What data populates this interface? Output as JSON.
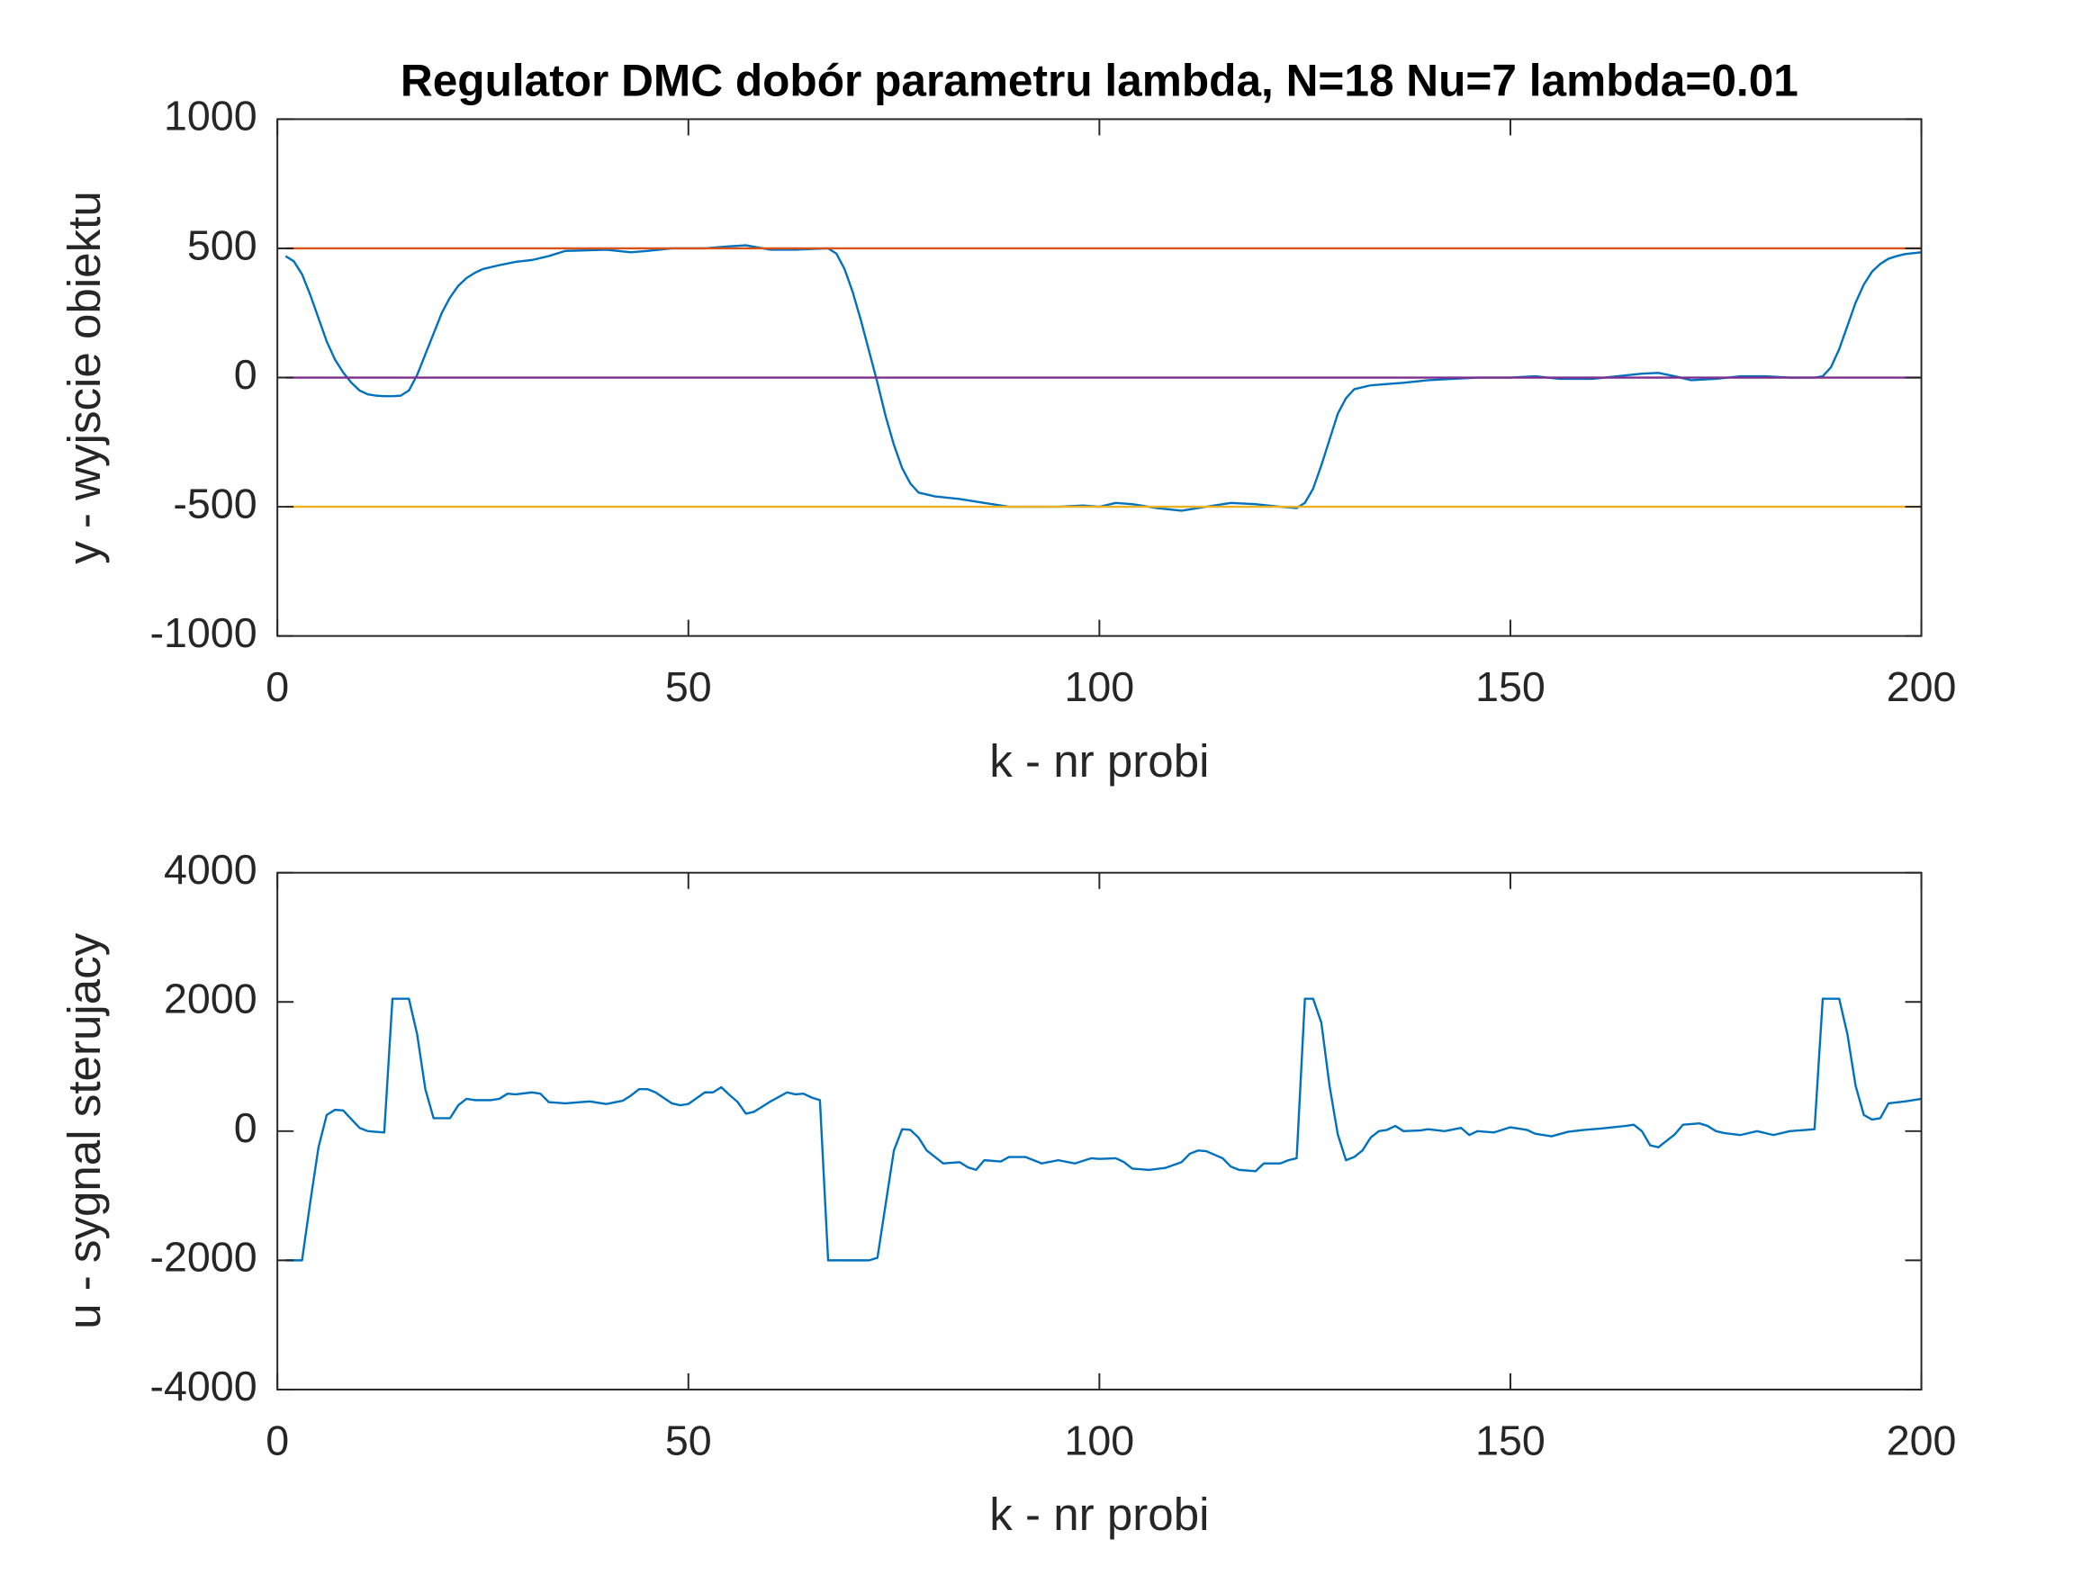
{
  "chart_data": [
    {
      "type": "line",
      "title": "Regulator DMC dobór parametru lambda, N=18 Nu=7 lambda=0.01",
      "x_label": "k - nr probi",
      "y_label": "y - wyjscie obiektu",
      "xlim": [
        0,
        200
      ],
      "xticks": [
        0,
        50,
        100,
        150,
        200
      ],
      "ylim": [
        -1000,
        1000
      ],
      "yticks": [
        -1000,
        -500,
        0,
        500,
        1000
      ],
      "series": [
        {
          "color": "#0072BD",
          "x": [
            1,
            2,
            3,
            4,
            5,
            6,
            7,
            8,
            9,
            10,
            11,
            12,
            13,
            14,
            15,
            16,
            17,
            18,
            19,
            20,
            21,
            22,
            23,
            24,
            25,
            27,
            29,
            31,
            33,
            35,
            40,
            43,
            45,
            48,
            52,
            55,
            57,
            60,
            63,
            67,
            68,
            69,
            70,
            71,
            72,
            73,
            74,
            75,
            76,
            77,
            78,
            80,
            83,
            86,
            89,
            92,
            95,
            98,
            100,
            102,
            104,
            107,
            110,
            113,
            116,
            119,
            122,
            124,
            125,
            126,
            127,
            128,
            129,
            130,
            131,
            133,
            135,
            137,
            140,
            143,
            146,
            150,
            153,
            156,
            160,
            163,
            166,
            168,
            170,
            172,
            175,
            178,
            181,
            184,
            187,
            188,
            189,
            190,
            191,
            192,
            193,
            194,
            195,
            196,
            197,
            198,
            200
          ],
          "values": [
            470,
            450,
            400,
            320,
            230,
            140,
            70,
            20,
            -20,
            -50,
            -65,
            -70,
            -72,
            -72,
            -70,
            -50,
            10,
            90,
            170,
            250,
            310,
            355,
            385,
            405,
            420,
            435,
            448,
            455,
            470,
            490,
            495,
            485,
            490,
            500,
            500,
            508,
            512,
            495,
            495,
            500,
            480,
            420,
            330,
            220,
            100,
            -20,
            -150,
            -260,
            -350,
            -410,
            -445,
            -460,
            -470,
            -485,
            -500,
            -500,
            -500,
            -495,
            -500,
            -485,
            -490,
            -505,
            -515,
            -500,
            -485,
            -490,
            -500,
            -505,
            -485,
            -430,
            -340,
            -240,
            -140,
            -80,
            -45,
            -30,
            -25,
            -20,
            -10,
            -5,
            0,
            0,
            5,
            -5,
            -5,
            5,
            15,
            18,
            5,
            -10,
            -5,
            5,
            5,
            0,
            0,
            5,
            40,
            110,
            200,
            290,
            360,
            410,
            440,
            460,
            470,
            478,
            485
          ]
        },
        {
          "color": "#D95319",
          "x": [
            1,
            200
          ],
          "values": [
            500,
            500
          ]
        },
        {
          "color": "#EDB120",
          "x": [
            1,
            200
          ],
          "values": [
            -500,
            -500
          ]
        },
        {
          "color": "#7E2F8E",
          "x": [
            1,
            200
          ],
          "values": [
            0,
            0
          ]
        }
      ]
    },
    {
      "type": "line",
      "x_label": "k - nr probi",
      "y_label": "u - sygnal sterujacy",
      "xlim": [
        0,
        200
      ],
      "xticks": [
        0,
        50,
        100,
        150,
        200
      ],
      "ylim": [
        -4000,
        4000
      ],
      "yticks": [
        -4000,
        -2000,
        0,
        2000,
        4000
      ],
      "series": [
        {
          "color": "#0072BD",
          "x": [
            1,
            3,
            4,
            5,
            6,
            7,
            8,
            10,
            11,
            13,
            14,
            16,
            17,
            18,
            19,
            21,
            22,
            23,
            24,
            26,
            27,
            28,
            29,
            31,
            32,
            33,
            35,
            38,
            40,
            42,
            43,
            44,
            45,
            46,
            48,
            49,
            50,
            52,
            53,
            54,
            55,
            56,
            57,
            58,
            60,
            62,
            63,
            64,
            65,
            66,
            67,
            72,
            73,
            75,
            76,
            77,
            78,
            79,
            81,
            83,
            84,
            85,
            86,
            88,
            89,
            91,
            93,
            95,
            97,
            99,
            100,
            102,
            103,
            104,
            106,
            108,
            110,
            111,
            112,
            113,
            115,
            116,
            117,
            119,
            120,
            122,
            123,
            124,
            125,
            126,
            127,
            128,
            129,
            130,
            131,
            132,
            133,
            134,
            135,
            136,
            137,
            139,
            140,
            142,
            144,
            145,
            146,
            148,
            150,
            152,
            153,
            155,
            157,
            159,
            161,
            164,
            165,
            166,
            167,
            168,
            170,
            171,
            173,
            174,
            175,
            176,
            178,
            180,
            182,
            184,
            186,
            187,
            188,
            190,
            191,
            192,
            193,
            194,
            195,
            196,
            198,
            200
          ],
          "values": [
            -2000,
            -2000,
            -1100,
            -250,
            250,
            330,
            320,
            50,
            0,
            -20,
            2050,
            2050,
            1500,
            650,
            200,
            200,
            400,
            500,
            480,
            480,
            500,
            580,
            570,
            600,
            580,
            450,
            430,
            460,
            420,
            470,
            550,
            650,
            650,
            600,
            430,
            400,
            420,
            600,
            600,
            680,
            560,
            450,
            270,
            300,
            460,
            600,
            570,
            580,
            520,
            480,
            -2000,
            -2000,
            -1960,
            -300,
            30,
            20,
            -100,
            -300,
            -500,
            -480,
            -560,
            -600,
            -450,
            -470,
            -400,
            -400,
            -500,
            -450,
            -500,
            -420,
            -430,
            -420,
            -480,
            -580,
            -600,
            -570,
            -480,
            -350,
            -300,
            -310,
            -420,
            -550,
            -600,
            -620,
            -500,
            -500,
            -450,
            -420,
            2050,
            2050,
            1680,
            700,
            -50,
            -450,
            -400,
            -300,
            -100,
            0,
            20,
            80,
            0,
            10,
            30,
            0,
            50,
            -60,
            0,
            -20,
            60,
            20,
            -40,
            -80,
            -10,
            20,
            40,
            80,
            100,
            0,
            -220,
            -250,
            -50,
            100,
            120,
            80,
            0,
            -30,
            -60,
            0,
            -60,
            0,
            20,
            30,
            2050,
            2050,
            1500,
            700,
            250,
            180,
            200,
            430,
            460,
            500
          ]
        }
      ]
    }
  ]
}
